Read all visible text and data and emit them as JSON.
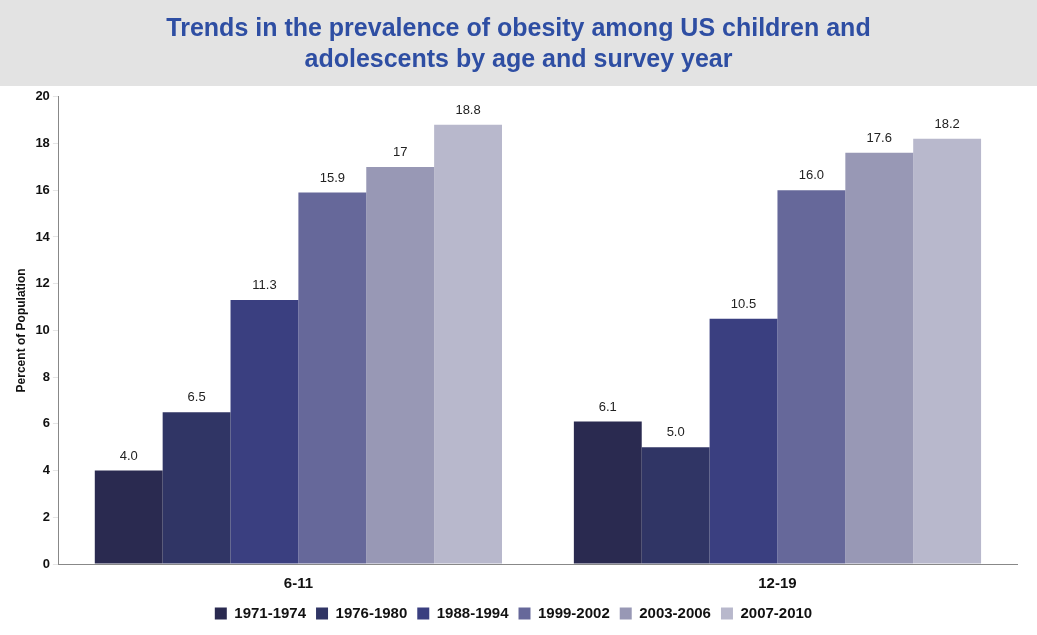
{
  "chart_data": {
    "type": "bar",
    "title": "Trends in the prevalence of obesity among US children and adolescents by age and survey year",
    "ylabel": "Percent of Population",
    "categories": [
      "6-11",
      "12-19"
    ],
    "series": [
      {
        "name": "1971-1974",
        "color": "#2a2a50",
        "values": [
          4.0,
          6.1
        ],
        "value_labels": [
          "4.0",
          "6.1"
        ]
      },
      {
        "name": "1976-1980",
        "color": "#303565",
        "values": [
          6.5,
          5.0
        ],
        "value_labels": [
          "6.5",
          "5.0"
        ]
      },
      {
        "name": "1988-1994",
        "color": "#3a3f80",
        "values": [
          11.3,
          10.5
        ],
        "value_labels": [
          "11.3",
          "10.5"
        ]
      },
      {
        "name": "1999-2002",
        "color": "#66689a",
        "values": [
          15.9,
          16.0
        ],
        "value_labels": [
          "15.9",
          "16.0"
        ]
      },
      {
        "name": "2003-2006",
        "color": "#9898b5",
        "values": [
          17,
          17.6
        ],
        "value_labels": [
          "17",
          "17.6"
        ]
      },
      {
        "name": "2007-2010",
        "color": "#b8b8cc",
        "values": [
          18.8,
          18.2
        ],
        "value_labels": [
          "18.8",
          "18.2"
        ]
      }
    ],
    "ylim": [
      0,
      20
    ],
    "yticks": [
      0,
      2,
      4,
      6,
      8,
      10,
      12,
      14,
      16,
      18,
      20
    ],
    "grid": false,
    "legend": "bottom"
  }
}
